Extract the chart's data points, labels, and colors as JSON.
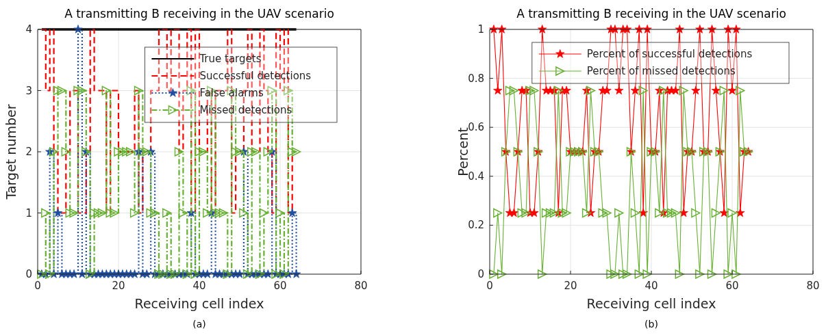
{
  "chart_data": [
    {
      "type": "step",
      "title": "A transmitting B receiving in the UAV scenario",
      "xlabel": "Receiving cell index",
      "ylabel": "Target number",
      "annotations": [
        "(a)"
      ],
      "x": [
        1,
        2,
        3,
        4,
        5,
        6,
        7,
        8,
        9,
        10,
        11,
        12,
        13,
        14,
        15,
        16,
        17,
        18,
        19,
        20,
        21,
        22,
        23,
        24,
        25,
        26,
        27,
        28,
        29,
        30,
        31,
        32,
        33,
        34,
        35,
        36,
        37,
        38,
        39,
        40,
        41,
        42,
        43,
        44,
        45,
        46,
        47,
        48,
        49,
        50,
        51,
        52,
        53,
        54,
        55,
        56,
        57,
        58,
        59,
        60,
        61,
        62,
        63,
        64
      ],
      "series": [
        {
          "name": "True targets",
          "color": "#000000",
          "line_style": "solid",
          "marker": "none",
          "values": [
            4,
            4,
            4,
            4,
            4,
            4,
            4,
            4,
            4,
            4,
            4,
            4,
            4,
            4,
            4,
            4,
            4,
            4,
            4,
            4,
            4,
            4,
            4,
            4,
            4,
            4,
            4,
            4,
            4,
            4,
            4,
            4,
            4,
            4,
            4,
            4,
            4,
            4,
            4,
            4,
            4,
            4,
            4,
            4,
            4,
            4,
            4,
            4,
            4,
            4,
            4,
            4,
            4,
            4,
            4,
            4,
            4,
            4,
            4,
            4,
            4,
            4,
            4,
            4
          ]
        },
        {
          "name": "Successful detections",
          "color": "#ff0000",
          "line_style": "dashed",
          "marker": "none",
          "values": [
            4,
            3,
            4,
            2,
            1,
            1,
            2,
            3,
            3,
            1,
            1,
            2,
            4,
            3,
            3,
            3,
            1,
            3,
            3,
            2,
            2,
            2,
            2,
            3,
            1,
            2,
            2,
            3,
            3,
            4,
            4,
            3,
            4,
            4,
            2,
            3,
            4,
            1,
            4,
            2,
            2,
            3,
            1,
            3,
            3,
            3,
            4,
            1,
            2,
            2,
            3,
            4,
            2,
            2,
            4,
            3,
            2,
            1,
            4,
            3,
            4,
            1,
            2,
            2
          ]
        },
        {
          "name": "False alarms",
          "color": "#1f4ea0",
          "line_style": "dotted",
          "marker": "star",
          "values": [
            0,
            0,
            2,
            0,
            1,
            0,
            0,
            0,
            0,
            4,
            0,
            2,
            0,
            0,
            0,
            0,
            0,
            0,
            0,
            0,
            0,
            0,
            0,
            0,
            2,
            0,
            0,
            2,
            0,
            0,
            0,
            0,
            0,
            0,
            0,
            0,
            0,
            1,
            0,
            0,
            0,
            0,
            1,
            0,
            0,
            0,
            0,
            0,
            0,
            0,
            2,
            0,
            0,
            0,
            0,
            0,
            0,
            2,
            0,
            0,
            0,
            0,
            1,
            0
          ]
        },
        {
          "name": "Missed detections",
          "color": "#66b032",
          "line_style": "dashdot",
          "marker": "triangle",
          "values": [
            0,
            1,
            0,
            2,
            3,
            3,
            2,
            1,
            1,
            3,
            3,
            2,
            0,
            1,
            1,
            1,
            3,
            1,
            1,
            2,
            2,
            2,
            2,
            1,
            3,
            2,
            2,
            1,
            1,
            0,
            0,
            1,
            0,
            0,
            2,
            1,
            0,
            3,
            0,
            2,
            2,
            1,
            3,
            1,
            1,
            1,
            0,
            3,
            2,
            2,
            1,
            0,
            2,
            2,
            0,
            1,
            2,
            3,
            0,
            1,
            0,
            3,
            2,
            2
          ]
        }
      ],
      "xlim": [
        0,
        80
      ],
      "xticks": [
        0,
        20,
        40,
        60,
        80
      ],
      "ylim": [
        0,
        4
      ],
      "yticks": [
        0,
        1,
        2,
        3,
        4
      ],
      "grid": true,
      "legend": "top right"
    },
    {
      "type": "line",
      "title": "A transmitting B receiving in the UAV scenario",
      "xlabel": "Receiving cell index",
      "ylabel": "Percent",
      "annotations": [
        "(b)"
      ],
      "x": [
        1,
        2,
        3,
        4,
        5,
        6,
        7,
        8,
        9,
        10,
        11,
        12,
        13,
        14,
        15,
        16,
        17,
        18,
        19,
        20,
        21,
        22,
        23,
        24,
        25,
        26,
        27,
        28,
        29,
        30,
        31,
        32,
        33,
        34,
        35,
        36,
        37,
        38,
        39,
        40,
        41,
        42,
        43,
        44,
        45,
        46,
        47,
        48,
        49,
        50,
        51,
        52,
        53,
        54,
        55,
        56,
        57,
        58,
        59,
        60,
        61,
        62,
        63,
        64
      ],
      "series": [
        {
          "name": "Percent of successful detections",
          "color": "#ff0000",
          "line_style": "solid",
          "marker": "star",
          "values": [
            1,
            0.75,
            1,
            0.5,
            0.25,
            0.25,
            0.5,
            0.75,
            0.75,
            0.25,
            0.25,
            0.5,
            1,
            0.75,
            0.75,
            0.75,
            0.25,
            0.75,
            0.75,
            0.5,
            0.5,
            0.5,
            0.5,
            0.75,
            0.25,
            0.5,
            0.5,
            0.75,
            0.75,
            1,
            1,
            0.75,
            1,
            1,
            0.5,
            0.75,
            1,
            0.25,
            1,
            0.5,
            0.5,
            0.75,
            0.25,
            0.75,
            0.75,
            0.75,
            1,
            0.25,
            0.5,
            0.5,
            0.75,
            1,
            0.5,
            0.5,
            1,
            0.75,
            0.5,
            0.25,
            1,
            0.75,
            1,
            0.25,
            0.5,
            0.5
          ]
        },
        {
          "name": "Percent of missed detections",
          "color": "#66b032",
          "line_style": "solid",
          "marker": "triangle",
          "values": [
            0,
            0.25,
            0,
            0.5,
            0.75,
            0.75,
            0.5,
            0.25,
            0.25,
            0.75,
            0.75,
            0.5,
            0,
            0.25,
            0.25,
            0.25,
            0.75,
            0.25,
            0.25,
            0.5,
            0.5,
            0.5,
            0.5,
            0.25,
            0.75,
            0.5,
            0.5,
            0.25,
            0.25,
            0,
            0,
            0.25,
            0,
            0,
            0.5,
            0.25,
            0,
            0.75,
            0,
            0.5,
            0.5,
            0.25,
            0.75,
            0.25,
            0.25,
            0.25,
            0,
            0.75,
            0.5,
            0.5,
            0.25,
            0,
            0.5,
            0.5,
            0,
            0.25,
            0.5,
            0.75,
            0,
            0.25,
            0,
            0.75,
            0.5,
            0.5
          ]
        }
      ],
      "xlim": [
        0,
        80
      ],
      "xticks": [
        0,
        20,
        40,
        60,
        80
      ],
      "ylim": [
        0,
        1
      ],
      "yticks": [
        0,
        0.2,
        0.4,
        0.6,
        0.8,
        1
      ],
      "grid": true,
      "legend": "top right"
    }
  ]
}
